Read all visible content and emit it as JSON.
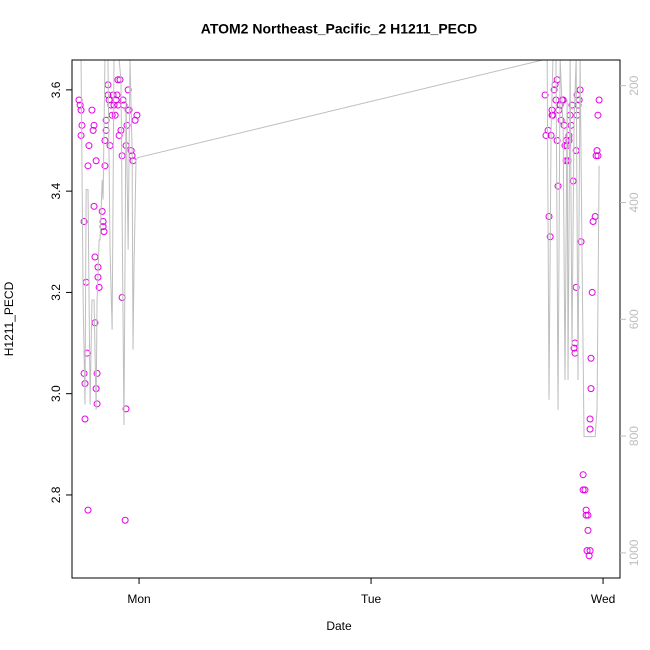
{
  "chart_data": {
    "type": "scatter",
    "title": "ATOM2 Northeast_Pacific_2 H1211_PECD",
    "xlabel": "Date",
    "ylabel": "H1211_PECD",
    "xlim": [
      0.711,
      3.073
    ],
    "xticks": [
      {
        "value": 1,
        "label": "Mon"
      },
      {
        "value": 2,
        "label": "Tue"
      },
      {
        "value": 3,
        "label": "Wed"
      }
    ],
    "ylim": [
      2.636,
      3.659
    ],
    "yticks": [
      2.8,
      {
        "value": 3,
        "label": "3.0"
      },
      3.2,
      3.4,
      3.6
    ],
    "y2lim": [
      1043,
      156
    ],
    "y2ticks": [
      200,
      400,
      600,
      800,
      1000
    ],
    "series": [
      {
        "color": "#e600e6",
        "x": [
          0.741,
          0.746,
          0.75,
          0.75,
          0.754,
          0.763,
          0.763,
          0.767,
          0.767,
          0.772,
          0.776,
          0.78,
          0.78,
          0.784,
          0.797,
          0.802,
          0.806,
          0.806,
          0.81,
          0.81,
          0.815,
          0.815,
          0.819,
          0.819,
          0.823,
          0.823,
          0.828,
          0.841,
          0.845,
          0.845,
          0.849,
          0.853,
          0.853,
          0.858,
          0.858,
          0.866,
          0.866,
          0.871,
          0.875,
          0.879,
          0.884,
          0.888,
          0.892,
          0.897,
          0.901,
          0.905,
          0.909,
          0.909,
          0.914,
          0.918,
          0.922,
          0.927,
          0.927,
          0.931,
          0.935,
          0.94,
          0.944,
          0.944,
          0.948,
          0.953,
          0.953,
          0.957,
          0.966,
          0.97,
          0.974,
          0.983,
          0.991,
          2.75,
          2.754,
          2.763,
          2.767,
          2.772,
          2.776,
          2.78,
          2.78,
          2.784,
          2.789,
          2.793,
          2.797,
          2.802,
          2.802,
          2.806,
          2.81,
          2.815,
          2.819,
          2.823,
          2.828,
          2.832,
          2.836,
          2.841,
          2.841,
          2.845,
          2.849,
          2.853,
          2.853,
          2.858,
          2.862,
          2.866,
          2.871,
          2.875,
          2.879,
          2.879,
          2.884,
          2.884,
          2.888,
          2.888,
          2.892,
          2.897,
          2.901,
          2.905,
          2.914,
          2.914,
          2.922,
          2.927,
          2.927,
          2.931,
          2.935,
          2.935,
          2.94,
          2.944,
          2.944,
          2.944,
          2.948,
          2.948,
          2.953,
          2.957,
          2.966,
          2.97,
          2.978,
          2.983,
          2.974,
          2.978
        ],
        "values": [
          3.58,
          3.57,
          3.56,
          3.51,
          3.53,
          3.34,
          3.04,
          3.02,
          2.95,
          3.22,
          3.08,
          2.77,
          3.45,
          3.49,
          3.56,
          3.52,
          3.53,
          3.37,
          3.27,
          3.14,
          3.46,
          3.01,
          3.04,
          2.98,
          3.25,
          3.23,
          3.21,
          3.36,
          3.34,
          3.33,
          3.32,
          3.45,
          3.5,
          3.54,
          3.52,
          3.61,
          3.59,
          3.58,
          3.49,
          3.57,
          3.55,
          3.59,
          3.57,
          3.55,
          3.58,
          3.59,
          3.57,
          3.62,
          3.51,
          3.62,
          3.52,
          3.47,
          3.19,
          3.58,
          3.57,
          2.75,
          2.97,
          3.49,
          3.53,
          3.56,
          3.6,
          3.56,
          3.48,
          3.47,
          3.46,
          3.54,
          3.55,
          3.59,
          3.51,
          3.52,
          3.35,
          3.31,
          3.51,
          3.55,
          3.56,
          3.55,
          3.6,
          3.61,
          3.58,
          3.62,
          3.5,
          3.41,
          3.56,
          3.57,
          3.54,
          3.58,
          3.58,
          3.53,
          3.49,
          3.5,
          3.46,
          3.49,
          3.46,
          3.51,
          3.5,
          3.55,
          3.53,
          3.57,
          3.42,
          3.09,
          3.08,
          3.1,
          3.21,
          3.48,
          3.55,
          3.59,
          3.57,
          3.58,
          3.6,
          3.3,
          2.84,
          2.81,
          2.81,
          2.77,
          2.76,
          2.69,
          2.76,
          2.73,
          2.68,
          2.69,
          2.93,
          2.95,
          3.07,
          3.01,
          3.2,
          3.34,
          3.35,
          3.47,
          3.55,
          3.58,
          3.48,
          3.47
        ]
      },
      {
        "type": "line",
        "axis": "y2",
        "color": "#bebebe",
        "x": [
          0.741,
          0.75,
          0.759,
          0.767,
          0.772,
          0.78,
          0.789,
          0.797,
          0.806,
          0.815,
          0.819,
          0.828,
          0.832,
          0.841,
          0.845,
          0.853,
          0.866,
          0.875,
          0.884,
          0.892,
          0.905,
          0.914,
          0.922,
          0.931,
          0.935,
          0.944,
          0.953,
          0.961,
          0.97,
          0.974,
          0.978,
          0.987,
          0.996,
          2.75,
          2.759,
          2.767,
          2.776,
          2.784,
          2.797,
          2.806,
          2.815,
          2.828,
          2.836,
          2.845,
          2.849,
          2.858,
          2.866,
          2.875,
          2.884,
          2.892,
          2.901,
          2.91,
          2.918,
          2.927,
          2.94,
          2.953,
          2.966,
          2.974,
          2.983
        ],
        "values": [
          155,
          155,
          567,
          746,
          378,
          378,
          746,
          567,
          567,
          755,
          567,
          464,
          464,
          361,
          395,
          155,
          155,
          481,
          618,
          155,
          155,
          155,
          190,
          601,
          781,
          224,
          481,
          155,
          310,
          652,
          515,
          327,
          323,
          155,
          155,
          738,
          275,
          155,
          155,
          755,
          155,
          275,
          704,
          224,
          704,
          155,
          652,
          258,
          155,
          704,
          155,
          515,
          801,
          801,
          801,
          801,
          801,
          755,
          337
        ]
      }
    ]
  }
}
